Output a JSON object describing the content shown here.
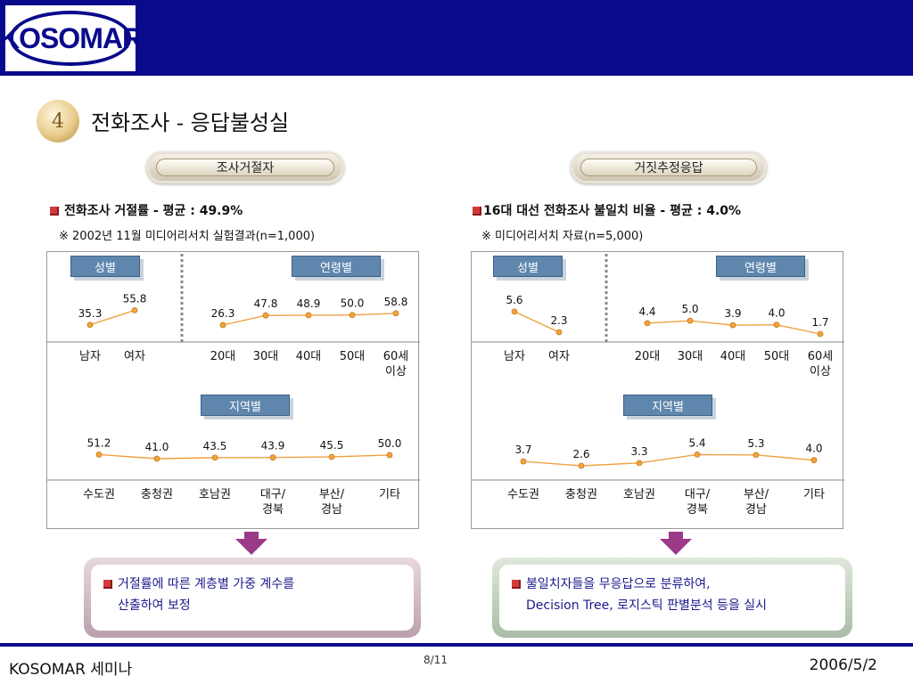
{
  "header": {
    "logo_text": "KOSOMAR"
  },
  "section": {
    "number": "4",
    "title": "전화조사 - 응답불성실"
  },
  "left": {
    "pill": "조사거절자",
    "headline": "전화조사 거절률 - 평균 : 49.9%",
    "note": "※ 2002년 11월 미디어리서치 실험결과(n=1,000)",
    "tags": {
      "gender": "성별",
      "age": "연령별",
      "region": "지역별"
    },
    "conclusion": [
      "거절률에 따른 계층별 가중 계수를",
      "산출하여 보정"
    ]
  },
  "right": {
    "pill": "거짓추정응답",
    "headline": "16대 대선 전화조사 불일치 비율 - 평균 : 4.0%",
    "note": "※ 미디어리서치 자료(n=5,000)",
    "tags": {
      "gender": "성별",
      "age": "연령별",
      "region": "지역별"
    },
    "conclusion": [
      "불일치자들을 무응답으로 분류하여,",
      "Decision Tree, 로지스틱 판별분석 등을 실시"
    ]
  },
  "chart_data": [
    {
      "type": "line",
      "panel": "left",
      "group": "성별",
      "categories": [
        "남자",
        "여자"
      ],
      "values": [
        35.3,
        55.8
      ]
    },
    {
      "type": "line",
      "panel": "left",
      "group": "연령별",
      "categories": [
        "20대",
        "30대",
        "40대",
        "50대",
        "60세\n이상"
      ],
      "values": [
        26.3,
        47.8,
        48.9,
        50.0,
        58.8
      ]
    },
    {
      "type": "line",
      "panel": "left",
      "group": "지역별",
      "categories": [
        "수도권",
        "충청권",
        "호남권",
        "대구/\n경북",
        "부산/\n경남",
        "기타"
      ],
      "values": [
        51.2,
        41.0,
        43.5,
        43.9,
        45.5,
        50.0
      ]
    },
    {
      "type": "line",
      "panel": "right",
      "group": "성별",
      "categories": [
        "남자",
        "여자"
      ],
      "values": [
        5.6,
        2.3
      ]
    },
    {
      "type": "line",
      "panel": "right",
      "group": "연령별",
      "categories": [
        "20대",
        "30대",
        "40대",
        "50대",
        "60세\n이상"
      ],
      "values": [
        4.4,
        5.0,
        3.9,
        4.0,
        1.7
      ]
    },
    {
      "type": "line",
      "panel": "right",
      "group": "지역별",
      "categories": [
        "수도권",
        "충청권",
        "호남권",
        "대구/\n경북",
        "부산/\n경남",
        "기타"
      ],
      "values": [
        3.7,
        2.6,
        3.3,
        5.4,
        5.3,
        4.0
      ]
    }
  ],
  "colors": {
    "line": "#f0a040",
    "marker_fill": "#f4a43a",
    "tag": "#5f86ad",
    "header": "#0a0a8c"
  },
  "footer": {
    "left": "KOSOMAR 세미나",
    "page": "8/11",
    "date": "2006/5/2"
  }
}
